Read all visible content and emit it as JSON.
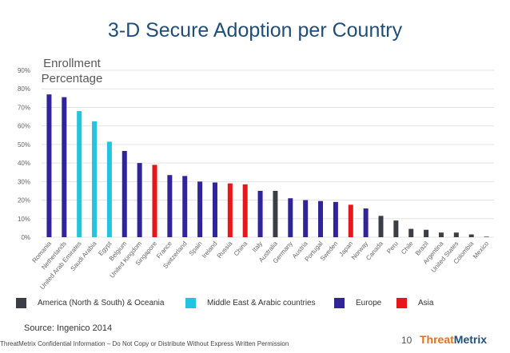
{
  "slide": {
    "title": "3-D Secure Adoption per Country",
    "source": "Source: Ingenico 2014",
    "footer": "ThreatMetrix Confidential Information – Do Not Copy or Distribute Without Express Written Permission",
    "page_number": "10",
    "logo_part1": "Threat",
    "logo_part2": "Metrix"
  },
  "chart_data": {
    "type": "bar",
    "ylabel": "Enrollment Percentage",
    "ylim": [
      0,
      90
    ],
    "yticks": [
      "0%",
      "10%",
      "20%",
      "30%",
      "40%",
      "50%",
      "60%",
      "70%",
      "80%",
      "90%"
    ],
    "grid": true,
    "categories": [
      "Romania",
      "Netherlands",
      "United Arab Emirates",
      "Saudi Arabia",
      "Egypt",
      "Belgium",
      "United Kingdom",
      "Singapore",
      "France",
      "Switzerland",
      "Spain",
      "Ireland",
      "Russia",
      "China",
      "Italy",
      "Australia",
      "Germany",
      "Austria",
      "Portugal",
      "Sweden",
      "Japan",
      "Norway",
      "Canada",
      "Peru",
      "Chile",
      "Brazil",
      "Argentina",
      "United States",
      "Colombia",
      "Mexico"
    ],
    "values": [
      77,
      75.5,
      68,
      62.5,
      51.5,
      46.5,
      40,
      39,
      33.5,
      33,
      30,
      29.5,
      29,
      28.5,
      25,
      25,
      21,
      20,
      19.5,
      19,
      17.5,
      15.5,
      11.5,
      9,
      4.5,
      4,
      2.5,
      2.5,
      1.5,
      0.3
    ],
    "groups": [
      "Europe",
      "Europe",
      "Middle East & Arabic countries",
      "Middle East & Arabic countries",
      "Middle East & Arabic countries",
      "Europe",
      "Europe",
      "Asia",
      "Europe",
      "Europe",
      "Europe",
      "Europe",
      "Asia",
      "Asia",
      "Europe",
      "America (North & South) & Oceania",
      "Europe",
      "Europe",
      "Europe",
      "Europe",
      "Asia",
      "Europe",
      "America (North & South) & Oceania",
      "America (North & South) & Oceania",
      "America (North & South) & Oceania",
      "America (North & South) & Oceania",
      "America (North & South) & Oceania",
      "America (North & South) & Oceania",
      "America (North & South) & Oceania",
      "America (North & South) & Oceania"
    ],
    "legend": [
      {
        "name": "America (North & South) & Oceania",
        "color": "#3b3f45"
      },
      {
        "name": "Middle East & Arabic countries",
        "color": "#22c4e0"
      },
      {
        "name": "Europe",
        "color": "#31239a"
      },
      {
        "name": "Asia",
        "color": "#e8151b"
      }
    ],
    "legend_position": "bottom"
  }
}
